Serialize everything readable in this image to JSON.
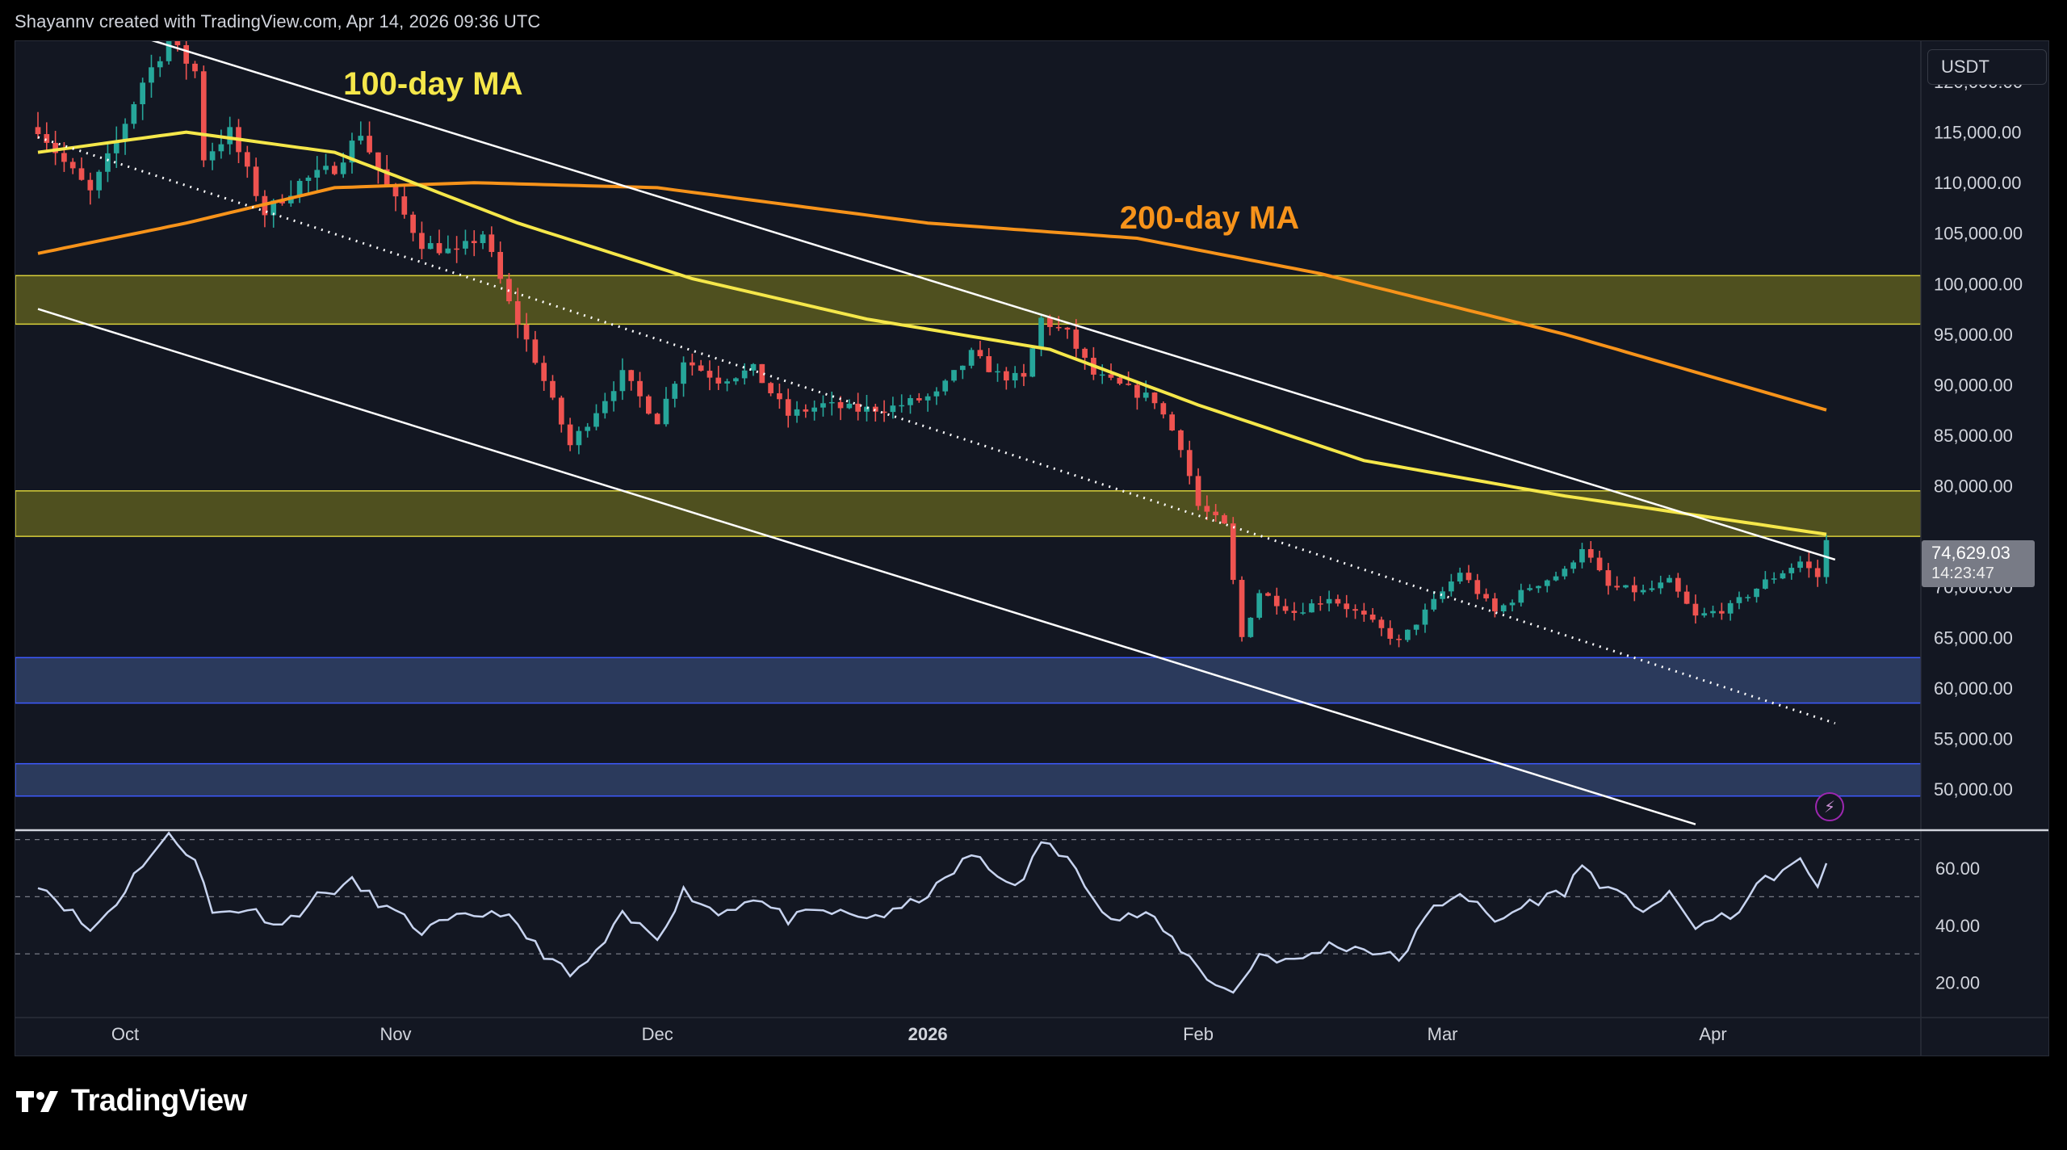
{
  "header": {
    "attribution": "Shayannv created with TradingView.com, Apr 14, 2026 09:36 UTC"
  },
  "price_axis": {
    "currency": "USDT",
    "labels": [
      "120,000.00",
      "115,000.00",
      "110,000.00",
      "105,000.00",
      "100,000.00",
      "95,000.00",
      "90,000.00",
      "85,000.00",
      "80,000.00",
      "70,000.00",
      "65,000.00",
      "60,000.00",
      "55,000.00",
      "50,000.00"
    ],
    "last_price": "74,629.03",
    "countdown": "14:23:47"
  },
  "rsi_axis": {
    "labels": [
      "60.00",
      "40.00",
      "20.00"
    ]
  },
  "time_axis": {
    "labels": [
      "Oct",
      "Nov",
      "Dec",
      "2026",
      "Feb",
      "Mar",
      "Apr"
    ]
  },
  "annotations": {
    "ma100": "100-day MA",
    "ma200": "200-day MA"
  },
  "footer": {
    "brand": "TradingView"
  },
  "colors": {
    "background": "#131722",
    "up": "#26a69a",
    "down": "#ef5350",
    "ma100": "#f5e74a",
    "ma200": "#f7931a",
    "supply_zone": "#5b5a1f",
    "demand_zone": "#2f3e63",
    "rsi_line": "#c8d4f0",
    "channel": "#ffffff"
  },
  "chart_data": [
    {
      "type": "candlestick",
      "title": "",
      "xlabel": "",
      "ylabel": "",
      "x_axis": {
        "type": "date",
        "start": "2025-09-21",
        "end": "2026-04-14",
        "ticks": [
          "Oct",
          "Nov",
          "Dec",
          "2026",
          "Feb",
          "Mar",
          "Apr"
        ]
      },
      "ylim": [
        46000,
        124000
      ],
      "grid": false,
      "last_price": 74629.03,
      "anchors": [
        [
          "2025-09-21",
          115500
        ],
        [
          "2025-09-24",
          112000
        ],
        [
          "2025-09-27",
          109000
        ],
        [
          "2025-09-30",
          114000
        ],
        [
          "2025-10-03",
          120000
        ],
        [
          "2025-10-06",
          124000
        ],
        [
          "2025-10-09",
          121000
        ],
        [
          "2025-10-10",
          112500
        ],
        [
          "2025-10-13",
          115000
        ],
        [
          "2025-10-17",
          107000
        ],
        [
          "2025-10-21",
          110000
        ],
        [
          "2025-10-25",
          111500
        ],
        [
          "2025-10-28",
          115000
        ],
        [
          "2025-10-31",
          109500
        ],
        [
          "2025-11-04",
          104000
        ],
        [
          "2025-11-08",
          103000
        ],
        [
          "2025-11-11",
          105000
        ],
        [
          "2025-11-14",
          98000
        ],
        [
          "2025-11-17",
          92500
        ],
        [
          "2025-11-21",
          84000
        ],
        [
          "2025-11-24",
          87500
        ],
        [
          "2025-11-27",
          91000
        ],
        [
          "2025-12-01",
          86500
        ],
        [
          "2025-12-04",
          92500
        ],
        [
          "2025-12-08",
          90500
        ],
        [
          "2025-12-12",
          91500
        ],
        [
          "2025-12-16",
          87000
        ],
        [
          "2025-12-20",
          88000
        ],
        [
          "2025-12-24",
          87500
        ],
        [
          "2025-12-28",
          87800
        ],
        [
          "2026-01-02",
          89000
        ],
        [
          "2026-01-06",
          93000
        ],
        [
          "2026-01-09",
          91000
        ],
        [
          "2026-01-12",
          90500
        ],
        [
          "2026-01-14",
          96500
        ],
        [
          "2026-01-17",
          95000
        ],
        [
          "2026-01-20",
          91000
        ],
        [
          "2026-01-24",
          89500
        ],
        [
          "2026-01-27",
          88500
        ],
        [
          "2026-01-30",
          84000
        ],
        [
          "2026-02-01",
          78000
        ],
        [
          "2026-02-04",
          76000
        ],
        [
          "2026-02-06",
          65000
        ],
        [
          "2026-02-08",
          69500
        ],
        [
          "2026-02-12",
          67500
        ],
        [
          "2026-02-16",
          69000
        ],
        [
          "2026-02-20",
          67000
        ],
        [
          "2026-02-24",
          64500
        ],
        [
          "2026-02-27",
          67500
        ],
        [
          "2026-03-03",
          71500
        ],
        [
          "2026-03-07",
          67500
        ],
        [
          "2026-03-11",
          70000
        ],
        [
          "2026-03-15",
          71500
        ],
        [
          "2026-03-17",
          74000
        ],
        [
          "2026-03-20",
          70000
        ],
        [
          "2026-03-24",
          69500
        ],
        [
          "2026-03-27",
          70500
        ],
        [
          "2026-03-30",
          67000
        ],
        [
          "2026-04-03",
          68000
        ],
        [
          "2026-04-07",
          70500
        ],
        [
          "2026-04-11",
          72500
        ],
        [
          "2026-04-13",
          71000
        ],
        [
          "2026-04-14",
          74629.03
        ]
      ],
      "series": [
        {
          "name": "100-day MA",
          "points": [
            [
              "2025-09-21",
              113000
            ],
            [
              "2025-10-08",
              115000
            ],
            [
              "2025-10-25",
              113000
            ],
            [
              "2025-11-15",
              106000
            ],
            [
              "2025-12-05",
              100500
            ],
            [
              "2025-12-25",
              96500
            ],
            [
              "2026-01-15",
              93500
            ],
            [
              "2026-02-01",
              88000
            ],
            [
              "2026-02-20",
              82500
            ],
            [
              "2026-03-15",
              79000
            ],
            [
              "2026-04-14",
              75200
            ]
          ]
        },
        {
          "name": "200-day MA",
          "points": [
            [
              "2025-09-21",
              103000
            ],
            [
              "2025-10-08",
              106000
            ],
            [
              "2025-10-25",
              109500
            ],
            [
              "2025-11-10",
              110000
            ],
            [
              "2025-12-01",
              109500
            ],
            [
              "2026-01-01",
              106000
            ],
            [
              "2026-01-25",
              104500
            ],
            [
              "2026-02-15",
              101000
            ],
            [
              "2026-03-15",
              95000
            ],
            [
              "2026-04-14",
              87500
            ]
          ]
        }
      ],
      "trendlines": [
        {
          "style": "solid",
          "points": [
            [
              "2025-09-25",
              126500
            ],
            [
              "2026-04-15",
              72700
            ]
          ]
        },
        {
          "style": "solid",
          "points": [
            [
              "2025-09-21",
              97500
            ],
            [
              "2026-03-30",
              46500
            ]
          ]
        },
        {
          "style": "dotted",
          "points": [
            [
              "2025-09-21",
              114500
            ],
            [
              "2026-04-15",
              56500
            ]
          ]
        }
      ],
      "zones": [
        {
          "kind": "supply",
          "from": 96000,
          "to": 100800
        },
        {
          "kind": "supply",
          "from": 75000,
          "to": 79500
        },
        {
          "kind": "demand",
          "from": 58500,
          "to": 63000
        },
        {
          "kind": "demand",
          "from": 49300,
          "to": 52500
        }
      ]
    },
    {
      "type": "line",
      "title": "",
      "xlabel": "",
      "ylabel": "",
      "ylim": [
        8,
        73
      ],
      "levels": [
        70,
        50,
        30
      ],
      "anchors": [
        [
          "2025-09-21",
          55
        ],
        [
          "2025-09-24",
          47
        ],
        [
          "2025-09-27",
          38
        ],
        [
          "2025-09-30",
          48
        ],
        [
          "2025-10-03",
          62
        ],
        [
          "2025-10-06",
          71
        ],
        [
          "2025-10-09",
          64
        ],
        [
          "2025-10-11",
          44
        ],
        [
          "2025-10-15",
          46
        ],
        [
          "2025-10-19",
          40
        ],
        [
          "2025-10-23",
          50
        ],
        [
          "2025-10-27",
          55
        ],
        [
          "2025-10-31",
          46
        ],
        [
          "2025-11-04",
          38
        ],
        [
          "2025-11-09",
          43
        ],
        [
          "2025-11-13",
          45
        ],
        [
          "2025-11-17",
          33
        ],
        [
          "2025-11-21",
          22
        ],
        [
          "2025-11-24",
          30
        ],
        [
          "2025-11-27",
          43
        ],
        [
          "2025-12-01",
          36
        ],
        [
          "2025-12-04",
          52
        ],
        [
          "2025-12-08",
          44
        ],
        [
          "2025-12-12",
          50
        ],
        [
          "2025-12-16",
          42
        ],
        [
          "2025-12-20",
          45
        ],
        [
          "2025-12-24",
          43
        ],
        [
          "2025-12-28",
          44
        ],
        [
          "2026-01-02",
          53
        ],
        [
          "2026-01-06",
          65
        ],
        [
          "2026-01-09",
          57
        ],
        [
          "2026-01-12",
          55
        ],
        [
          "2026-01-14",
          70
        ],
        [
          "2026-01-18",
          60
        ],
        [
          "2026-01-22",
          42
        ],
        [
          "2026-01-26",
          44
        ],
        [
          "2026-01-30",
          32
        ],
        [
          "2026-02-02",
          22
        ],
        [
          "2026-02-05",
          16
        ],
        [
          "2026-02-08",
          30
        ],
        [
          "2026-02-12",
          27
        ],
        [
          "2026-02-16",
          33
        ],
        [
          "2026-02-20",
          32
        ],
        [
          "2026-02-24",
          28
        ],
        [
          "2026-02-28",
          46
        ],
        [
          "2026-03-03",
          52
        ],
        [
          "2026-03-07",
          41
        ],
        [
          "2026-03-11",
          48
        ],
        [
          "2026-03-15",
          52
        ],
        [
          "2026-03-17",
          61
        ],
        [
          "2026-03-20",
          52
        ],
        [
          "2026-03-24",
          46
        ],
        [
          "2026-03-27",
          50
        ],
        [
          "2026-03-30",
          40
        ],
        [
          "2026-04-03",
          43
        ],
        [
          "2026-04-07",
          56
        ],
        [
          "2026-04-11",
          62
        ],
        [
          "2026-04-13",
          54
        ],
        [
          "2026-04-14",
          63
        ]
      ]
    }
  ]
}
